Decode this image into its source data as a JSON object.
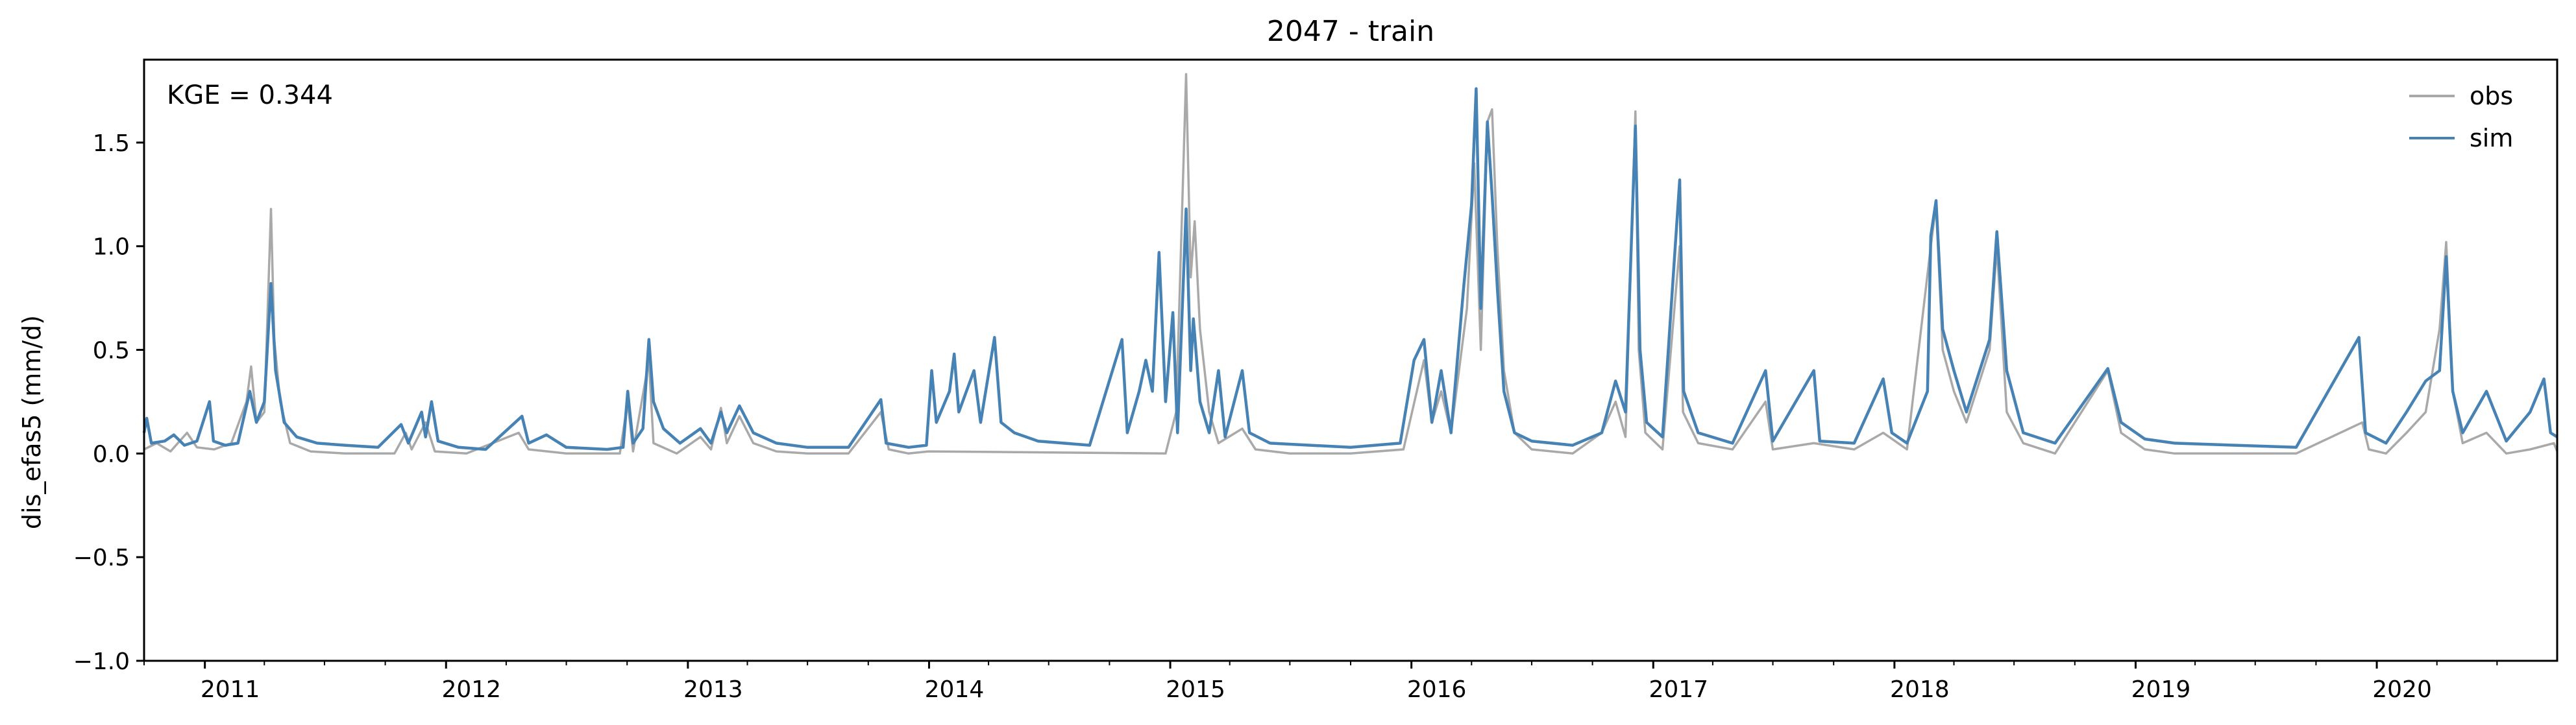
{
  "chart_data": {
    "type": "line",
    "title": "2047 - train",
    "ylabel": "dis_efas5 (mm/d)",
    "xlabel": "",
    "annotation": "KGE = 0.344",
    "xlim": [
      "2010-10-01",
      "2020-09-30"
    ],
    "ylim": [
      -1.0,
      1.9
    ],
    "yticks": [
      -1.0,
      -0.5,
      0.0,
      0.5,
      1.0,
      1.5
    ],
    "ytick_labels": [
      "−1.0",
      "−0.5",
      "0.0",
      "0.5",
      "1.0",
      "1.5"
    ],
    "xticks": [
      "2011-01-01",
      "2012-01-01",
      "2013-01-01",
      "2014-01-01",
      "2015-01-01",
      "2016-01-01",
      "2017-01-01",
      "2018-01-01",
      "2019-01-01",
      "2020-01-01"
    ],
    "xtick_labels": [
      "2011",
      "2012",
      "2013",
      "2014",
      "2015",
      "2016",
      "2017",
      "2018",
      "2019",
      "2020"
    ],
    "grid": false,
    "legend": "top-right",
    "series": [
      {
        "name": "obs",
        "color": "#a9a9a9",
        "points": [
          [
            "2010-10-01",
            0.02
          ],
          [
            "2010-10-20",
            0.05
          ],
          [
            "2010-11-10",
            0.01
          ],
          [
            "2010-12-05",
            0.1
          ],
          [
            "2010-12-20",
            0.03
          ],
          [
            "2011-01-15",
            0.02
          ],
          [
            "2011-02-10",
            0.05
          ],
          [
            "2011-03-05",
            0.25
          ],
          [
            "2011-03-12",
            0.42
          ],
          [
            "2011-03-20",
            0.15
          ],
          [
            "2011-04-01",
            0.2
          ],
          [
            "2011-04-11",
            1.18
          ],
          [
            "2011-04-16",
            0.55
          ],
          [
            "2011-04-25",
            0.25
          ],
          [
            "2011-05-10",
            0.05
          ],
          [
            "2011-06-10",
            0.01
          ],
          [
            "2011-08-01",
            0.0
          ],
          [
            "2011-10-15",
            0.0
          ],
          [
            "2011-11-01",
            0.1
          ],
          [
            "2011-11-10",
            0.02
          ],
          [
            "2011-12-01",
            0.15
          ],
          [
            "2011-12-15",
            0.01
          ],
          [
            "2012-02-01",
            0.0
          ],
          [
            "2012-04-20",
            0.1
          ],
          [
            "2012-05-05",
            0.02
          ],
          [
            "2012-07-01",
            0.0
          ],
          [
            "2012-09-20",
            0.0
          ],
          [
            "2012-10-02",
            0.25
          ],
          [
            "2012-10-10",
            0.01
          ],
          [
            "2012-11-03",
            0.45
          ],
          [
            "2012-11-10",
            0.05
          ],
          [
            "2012-12-15",
            0.0
          ],
          [
            "2013-01-20",
            0.08
          ],
          [
            "2013-02-05",
            0.02
          ],
          [
            "2013-02-20",
            0.22
          ],
          [
            "2013-03-01",
            0.05
          ],
          [
            "2013-03-20",
            0.18
          ],
          [
            "2013-04-10",
            0.05
          ],
          [
            "2013-05-15",
            0.01
          ],
          [
            "2013-07-01",
            0.0
          ],
          [
            "2013-09-01",
            0.0
          ],
          [
            "2013-10-20",
            0.2
          ],
          [
            "2013-11-01",
            0.02
          ],
          [
            "2013-12-01",
            0.0
          ],
          [
            "2013-12-31",
            0.01
          ],
          [
            "2014-12-25",
            0.0
          ],
          [
            "2015-01-10",
            0.2
          ],
          [
            "2015-01-25",
            1.83
          ],
          [
            "2015-02-01",
            0.85
          ],
          [
            "2015-02-07",
            1.12
          ],
          [
            "2015-02-15",
            0.6
          ],
          [
            "2015-03-01",
            0.2
          ],
          [
            "2015-03-15",
            0.05
          ],
          [
            "2015-04-20",
            0.12
          ],
          [
            "2015-05-10",
            0.02
          ],
          [
            "2015-07-01",
            0.0
          ],
          [
            "2015-10-01",
            0.0
          ],
          [
            "2015-12-20",
            0.02
          ],
          [
            "2016-01-20",
            0.45
          ],
          [
            "2016-02-01",
            0.15
          ],
          [
            "2016-02-15",
            0.3
          ],
          [
            "2016-03-01",
            0.1
          ],
          [
            "2016-03-25",
            0.7
          ],
          [
            "2016-04-05",
            1.4
          ],
          [
            "2016-04-15",
            0.5
          ],
          [
            "2016-04-25",
            1.6
          ],
          [
            "2016-05-02",
            1.66
          ],
          [
            "2016-05-10",
            1.0
          ],
          [
            "2016-05-20",
            0.4
          ],
          [
            "2016-06-05",
            0.1
          ],
          [
            "2016-07-01",
            0.02
          ],
          [
            "2016-09-01",
            0.0
          ],
          [
            "2016-10-15",
            0.1
          ],
          [
            "2016-11-05",
            0.25
          ],
          [
            "2016-11-20",
            0.08
          ],
          [
            "2016-12-05",
            1.65
          ],
          [
            "2016-12-10",
            0.5
          ],
          [
            "2016-12-20",
            0.1
          ],
          [
            "2017-01-15",
            0.02
          ],
          [
            "2017-02-10",
            1.0
          ],
          [
            "2017-02-15",
            0.2
          ],
          [
            "2017-03-10",
            0.05
          ],
          [
            "2017-05-01",
            0.02
          ],
          [
            "2017-06-20",
            0.25
          ],
          [
            "2017-07-01",
            0.02
          ],
          [
            "2017-09-01",
            0.05
          ],
          [
            "2017-11-01",
            0.02
          ],
          [
            "2017-12-15",
            0.1
          ],
          [
            "2018-01-20",
            0.02
          ],
          [
            "2018-02-25",
            1.0
          ],
          [
            "2018-03-05",
            1.2
          ],
          [
            "2018-03-15",
            0.5
          ],
          [
            "2018-04-01",
            0.3
          ],
          [
            "2018-04-20",
            0.15
          ],
          [
            "2018-05-25",
            0.5
          ],
          [
            "2018-06-05",
            1.0
          ],
          [
            "2018-06-20",
            0.2
          ],
          [
            "2018-07-15",
            0.05
          ],
          [
            "2018-09-01",
            0.0
          ],
          [
            "2018-11-20",
            0.4
          ],
          [
            "2018-12-10",
            0.1
          ],
          [
            "2019-01-15",
            0.02
          ],
          [
            "2019-03-01",
            0.0
          ],
          [
            "2019-06-01",
            0.0
          ],
          [
            "2019-09-01",
            0.0
          ],
          [
            "2019-12-10",
            0.15
          ],
          [
            "2019-12-20",
            0.02
          ],
          [
            "2020-01-15",
            0.0
          ],
          [
            "2020-02-15",
            0.1
          ],
          [
            "2020-03-15",
            0.2
          ],
          [
            "2020-04-05",
            0.6
          ],
          [
            "2020-04-15",
            1.02
          ],
          [
            "2020-04-25",
            0.3
          ],
          [
            "2020-05-10",
            0.05
          ],
          [
            "2020-06-15",
            0.1
          ],
          [
            "2020-07-15",
            0.0
          ],
          [
            "2020-08-20",
            0.02
          ],
          [
            "2020-09-25",
            0.05
          ],
          [
            "2020-09-30",
            0.01
          ]
        ]
      },
      {
        "name": "sim",
        "color": "#4682b4",
        "points": [
          [
            "2010-10-01",
            0.1
          ],
          [
            "2010-10-05",
            0.17
          ],
          [
            "2010-10-12",
            0.05
          ],
          [
            "2010-11-01",
            0.06
          ],
          [
            "2010-11-15",
            0.09
          ],
          [
            "2010-12-01",
            0.04
          ],
          [
            "2010-12-20",
            0.06
          ],
          [
            "2011-01-08",
            0.25
          ],
          [
            "2011-01-14",
            0.06
          ],
          [
            "2011-02-01",
            0.04
          ],
          [
            "2011-02-20",
            0.05
          ],
          [
            "2011-03-10",
            0.3
          ],
          [
            "2011-03-20",
            0.15
          ],
          [
            "2011-04-01",
            0.25
          ],
          [
            "2011-04-11",
            0.82
          ],
          [
            "2011-04-18",
            0.4
          ],
          [
            "2011-05-01",
            0.15
          ],
          [
            "2011-05-20",
            0.08
          ],
          [
            "2011-06-20",
            0.05
          ],
          [
            "2011-08-01",
            0.04
          ],
          [
            "2011-09-20",
            0.03
          ],
          [
            "2011-10-25",
            0.14
          ],
          [
            "2011-11-05",
            0.05
          ],
          [
            "2011-11-25",
            0.2
          ],
          [
            "2011-12-01",
            0.08
          ],
          [
            "2011-12-10",
            0.25
          ],
          [
            "2011-12-20",
            0.06
          ],
          [
            "2012-01-20",
            0.03
          ],
          [
            "2012-03-01",
            0.02
          ],
          [
            "2012-04-25",
            0.18
          ],
          [
            "2012-05-05",
            0.05
          ],
          [
            "2012-06-01",
            0.09
          ],
          [
            "2012-07-01",
            0.03
          ],
          [
            "2012-09-01",
            0.02
          ],
          [
            "2012-09-25",
            0.03
          ],
          [
            "2012-10-02",
            0.3
          ],
          [
            "2012-10-10",
            0.05
          ],
          [
            "2012-10-25",
            0.12
          ],
          [
            "2012-11-03",
            0.55
          ],
          [
            "2012-11-10",
            0.25
          ],
          [
            "2012-11-25",
            0.12
          ],
          [
            "2012-12-20",
            0.05
          ],
          [
            "2013-01-20",
            0.12
          ],
          [
            "2013-02-05",
            0.05
          ],
          [
            "2013-02-20",
            0.2
          ],
          [
            "2013-03-01",
            0.1
          ],
          [
            "2013-03-20",
            0.23
          ],
          [
            "2013-04-10",
            0.1
          ],
          [
            "2013-05-15",
            0.05
          ],
          [
            "2013-07-01",
            0.03
          ],
          [
            "2013-09-01",
            0.03
          ],
          [
            "2013-10-20",
            0.26
          ],
          [
            "2013-10-28",
            0.05
          ],
          [
            "2013-12-01",
            0.03
          ],
          [
            "2013-12-28",
            0.04
          ],
          [
            "2014-01-05",
            0.4
          ],
          [
            "2014-01-12",
            0.15
          ],
          [
            "2014-02-01",
            0.3
          ],
          [
            "2014-02-08",
            0.48
          ],
          [
            "2014-02-15",
            0.2
          ],
          [
            "2014-03-10",
            0.4
          ],
          [
            "2014-03-20",
            0.15
          ],
          [
            "2014-04-10",
            0.56
          ],
          [
            "2014-04-20",
            0.15
          ],
          [
            "2014-05-10",
            0.1
          ],
          [
            "2014-06-15",
            0.06
          ],
          [
            "2014-09-01",
            0.04
          ],
          [
            "2014-10-20",
            0.55
          ],
          [
            "2014-10-28",
            0.1
          ],
          [
            "2014-11-15",
            0.3
          ],
          [
            "2014-11-25",
            0.45
          ],
          [
            "2014-12-05",
            0.3
          ],
          [
            "2014-12-15",
            0.97
          ],
          [
            "2014-12-25",
            0.25
          ],
          [
            "2015-01-05",
            0.68
          ],
          [
            "2015-01-12",
            0.1
          ],
          [
            "2015-01-25",
            1.18
          ],
          [
            "2015-02-01",
            0.4
          ],
          [
            "2015-02-05",
            0.65
          ],
          [
            "2015-02-15",
            0.25
          ],
          [
            "2015-03-01",
            0.1
          ],
          [
            "2015-03-15",
            0.4
          ],
          [
            "2015-03-25",
            0.08
          ],
          [
            "2015-04-20",
            0.4
          ],
          [
            "2015-05-01",
            0.1
          ],
          [
            "2015-06-01",
            0.05
          ],
          [
            "2015-08-01",
            0.04
          ],
          [
            "2015-10-01",
            0.03
          ],
          [
            "2015-12-15",
            0.05
          ],
          [
            "2016-01-05",
            0.45
          ],
          [
            "2016-01-20",
            0.55
          ],
          [
            "2016-02-01",
            0.15
          ],
          [
            "2016-02-15",
            0.4
          ],
          [
            "2016-03-01",
            0.1
          ],
          [
            "2016-03-20",
            0.8
          ],
          [
            "2016-04-01",
            1.2
          ],
          [
            "2016-04-08",
            1.76
          ],
          [
            "2016-04-15",
            0.7
          ],
          [
            "2016-04-25",
            1.6
          ],
          [
            "2016-05-02",
            1.25
          ],
          [
            "2016-05-10",
            0.8
          ],
          [
            "2016-05-20",
            0.3
          ],
          [
            "2016-06-05",
            0.1
          ],
          [
            "2016-07-01",
            0.06
          ],
          [
            "2016-09-01",
            0.04
          ],
          [
            "2016-10-15",
            0.1
          ],
          [
            "2016-11-05",
            0.35
          ],
          [
            "2016-11-20",
            0.2
          ],
          [
            "2016-12-05",
            1.58
          ],
          [
            "2016-12-12",
            0.5
          ],
          [
            "2016-12-22",
            0.15
          ],
          [
            "2017-01-15",
            0.08
          ],
          [
            "2017-02-10",
            1.32
          ],
          [
            "2017-02-16",
            0.3
          ],
          [
            "2017-03-10",
            0.1
          ],
          [
            "2017-05-01",
            0.05
          ],
          [
            "2017-06-20",
            0.4
          ],
          [
            "2017-07-01",
            0.06
          ],
          [
            "2017-09-01",
            0.4
          ],
          [
            "2017-09-10",
            0.06
          ],
          [
            "2017-11-01",
            0.05
          ],
          [
            "2017-12-15",
            0.36
          ],
          [
            "2017-12-28",
            0.1
          ],
          [
            "2018-01-20",
            0.05
          ],
          [
            "2018-02-20",
            0.3
          ],
          [
            "2018-02-25",
            1.05
          ],
          [
            "2018-03-05",
            1.22
          ],
          [
            "2018-03-15",
            0.6
          ],
          [
            "2018-04-01",
            0.4
          ],
          [
            "2018-04-20",
            0.2
          ],
          [
            "2018-05-25",
            0.55
          ],
          [
            "2018-06-05",
            1.07
          ],
          [
            "2018-06-20",
            0.4
          ],
          [
            "2018-07-15",
            0.1
          ],
          [
            "2018-09-01",
            0.05
          ],
          [
            "2018-11-20",
            0.41
          ],
          [
            "2018-12-10",
            0.15
          ],
          [
            "2019-01-15",
            0.07
          ],
          [
            "2019-03-01",
            0.05
          ],
          [
            "2019-06-01",
            0.04
          ],
          [
            "2019-09-01",
            0.03
          ],
          [
            "2019-12-05",
            0.56
          ],
          [
            "2019-12-15",
            0.1
          ],
          [
            "2020-01-15",
            0.05
          ],
          [
            "2020-02-15",
            0.2
          ],
          [
            "2020-03-15",
            0.35
          ],
          [
            "2020-04-05",
            0.4
          ],
          [
            "2020-04-15",
            0.95
          ],
          [
            "2020-04-25",
            0.3
          ],
          [
            "2020-05-10",
            0.1
          ],
          [
            "2020-06-15",
            0.3
          ],
          [
            "2020-07-15",
            0.06
          ],
          [
            "2020-08-20",
            0.2
          ],
          [
            "2020-09-10",
            0.36
          ],
          [
            "2020-09-20",
            0.1
          ],
          [
            "2020-09-30",
            0.08
          ]
        ]
      }
    ]
  }
}
